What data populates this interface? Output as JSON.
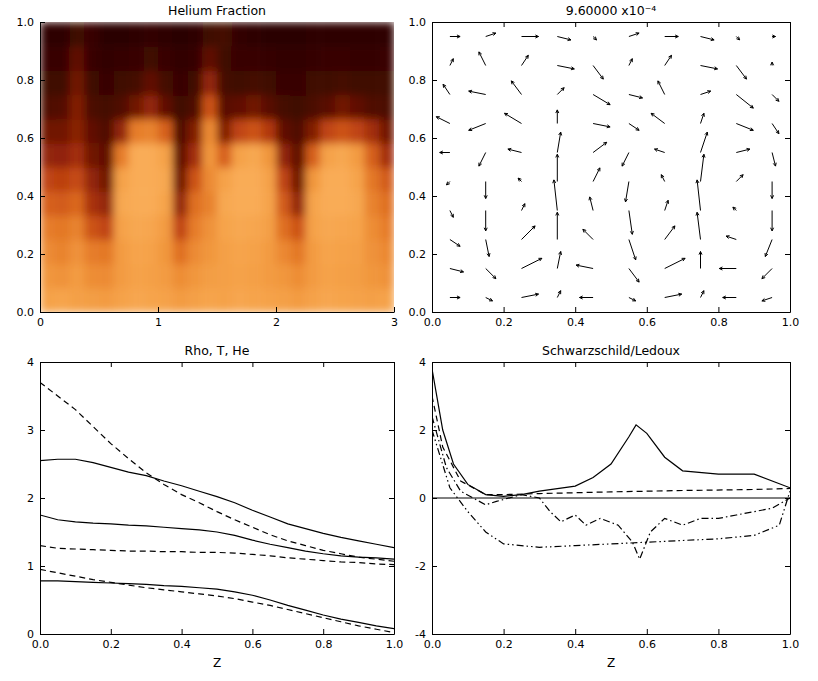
{
  "chart_data": [
    {
      "type": "heatmap",
      "title": "Helium Fraction",
      "xlim": [
        0,
        3
      ],
      "ylim": [
        0,
        1
      ],
      "xticks": [
        0,
        1,
        2,
        3
      ],
      "yticks": [
        {
          "value": 0,
          "label": "0.0"
        },
        {
          "value": 0.2,
          "label": "0.2"
        },
        {
          "value": 0.4,
          "label": "0.4"
        },
        {
          "value": 0.6,
          "label": "0.6"
        },
        {
          "value": 0.8,
          "label": "0.8"
        },
        {
          "value": 1,
          "label": "1.0"
        }
      ],
      "zlim": [
        0,
        1
      ],
      "cells": [
        [
          0.85,
          0.86,
          0.84,
          0.83,
          0.82,
          0.85,
          0.87,
          0.86,
          0.85,
          0.82,
          0.84,
          0.86,
          0.85,
          0.87,
          0.86,
          0.85,
          0.84,
          0.82,
          0.85,
          0.87,
          0.86,
          0.85,
          0.84,
          0.85
        ],
        [
          0.8,
          0.78,
          0.82,
          0.76,
          0.75,
          0.82,
          0.85,
          0.84,
          0.82,
          0.76,
          0.8,
          0.83,
          0.84,
          0.85,
          0.84,
          0.82,
          0.8,
          0.76,
          0.82,
          0.85,
          0.84,
          0.83,
          0.8,
          0.78
        ],
        [
          0.75,
          0.72,
          0.78,
          0.7,
          0.68,
          0.82,
          0.86,
          0.85,
          0.8,
          0.65,
          0.75,
          0.8,
          0.84,
          0.86,
          0.85,
          0.82,
          0.74,
          0.68,
          0.82,
          0.86,
          0.85,
          0.84,
          0.78,
          0.74
        ],
        [
          0.7,
          0.68,
          0.72,
          0.55,
          0.5,
          0.85,
          0.88,
          0.87,
          0.82,
          0.5,
          0.7,
          0.78,
          0.86,
          0.88,
          0.87,
          0.84,
          0.65,
          0.55,
          0.85,
          0.88,
          0.87,
          0.86,
          0.76,
          0.7
        ],
        [
          0.6,
          0.58,
          0.62,
          0.42,
          0.35,
          0.88,
          0.9,
          0.9,
          0.86,
          0.35,
          0.65,
          0.72,
          0.88,
          0.9,
          0.9,
          0.86,
          0.58,
          0.35,
          0.86,
          0.9,
          0.9,
          0.88,
          0.72,
          0.65
        ],
        [
          0.5,
          0.48,
          0.52,
          0.35,
          0.25,
          0.85,
          0.9,
          0.9,
          0.88,
          0.25,
          0.55,
          0.75,
          0.85,
          0.9,
          0.9,
          0.85,
          0.5,
          0.25,
          0.8,
          0.9,
          0.9,
          0.86,
          0.68,
          0.58
        ],
        [
          0.35,
          0.34,
          0.4,
          0.25,
          0.2,
          0.7,
          0.9,
          0.9,
          0.85,
          0.2,
          0.4,
          0.8,
          0.6,
          0.85,
          0.88,
          0.8,
          0.35,
          0.2,
          0.6,
          0.85,
          0.88,
          0.82,
          0.6,
          0.4
        ],
        [
          0.25,
          0.25,
          0.32,
          0.2,
          0.15,
          0.35,
          0.7,
          0.72,
          0.6,
          0.15,
          0.3,
          0.75,
          0.3,
          0.5,
          0.55,
          0.45,
          0.2,
          0.15,
          0.3,
          0.5,
          0.55,
          0.5,
          0.4,
          0.25
        ],
        [
          0.15,
          0.16,
          0.3,
          0.14,
          0.12,
          0.15,
          0.25,
          0.35,
          0.2,
          0.1,
          0.15,
          0.55,
          0.18,
          0.2,
          0.25,
          0.18,
          0.12,
          0.1,
          0.14,
          0.18,
          0.25,
          0.2,
          0.15,
          0.14
        ],
        [
          0.1,
          0.1,
          0.25,
          0.1,
          0.08,
          0.1,
          0.12,
          0.2,
          0.12,
          0.08,
          0.1,
          0.35,
          0.12,
          0.1,
          0.12,
          0.1,
          0.08,
          0.08,
          0.1,
          0.1,
          0.12,
          0.1,
          0.1,
          0.1
        ],
        [
          0.08,
          0.08,
          0.2,
          0.08,
          0.06,
          0.07,
          0.08,
          0.1,
          0.08,
          0.06,
          0.07,
          0.2,
          0.1,
          0.08,
          0.08,
          0.07,
          0.06,
          0.06,
          0.07,
          0.08,
          0.08,
          0.07,
          0.07,
          0.08
        ],
        [
          0.05,
          0.05,
          0.1,
          0.08,
          0.04,
          0.04,
          0.05,
          0.06,
          0.05,
          0.04,
          0.05,
          0.1,
          0.12,
          0.06,
          0.05,
          0.04,
          0.04,
          0.04,
          0.05,
          0.05,
          0.05,
          0.05,
          0.05,
          0.05
        ]
      ]
    },
    {
      "type": "quiver",
      "title": "9.60000 x10⁻⁴",
      "xlim": [
        0,
        1
      ],
      "ylim": [
        0,
        1
      ],
      "xticks": [
        {
          "value": 0,
          "label": "0.0"
        },
        {
          "value": 0.2,
          "label": "0.2"
        },
        {
          "value": 0.4,
          "label": "0.4"
        },
        {
          "value": 0.6,
          "label": "0.6"
        },
        {
          "value": 0.8,
          "label": "0.8"
        },
        {
          "value": 1,
          "label": "1.0"
        }
      ],
      "yticks": [
        {
          "value": 0,
          "label": "0.0"
        },
        {
          "value": 0.2,
          "label": "0.2"
        },
        {
          "value": 0.4,
          "label": "0.4"
        },
        {
          "value": 0.6,
          "label": "0.6"
        },
        {
          "value": 0.8,
          "label": "0.8"
        },
        {
          "value": 1,
          "label": "1.0"
        }
      ],
      "color": "#000000",
      "x": [
        0.05,
        0.15,
        0.25,
        0.35,
        0.45,
        0.55,
        0.65,
        0.75,
        0.85,
        0.95
      ],
      "y": [
        0.05,
        0.15,
        0.25,
        0.35,
        0.45,
        0.55,
        0.65,
        0.75,
        0.85,
        0.95
      ],
      "u": [
        [
          0.3,
          0.2,
          0.5,
          0.1,
          -0.4,
          0.2,
          0.5,
          0.1,
          -0.4,
          -0.3
        ],
        [
          0.4,
          0.3,
          0.6,
          0.1,
          -0.5,
          0.3,
          0.6,
          0.0,
          -0.5,
          -0.3
        ],
        [
          0.3,
          0.1,
          0.4,
          0.0,
          -0.3,
          0.2,
          0.3,
          -0.1,
          -0.3,
          -0.2
        ],
        [
          0.1,
          0.0,
          0.1,
          -0.1,
          -0.1,
          0.1,
          0.1,
          -0.1,
          -0.1,
          0.0
        ],
        [
          -0.1,
          0.0,
          -0.1,
          0.0,
          0.2,
          -0.1,
          -0.1,
          0.1,
          0.2,
          0.0
        ],
        [
          -0.3,
          -0.2,
          -0.4,
          0.1,
          0.4,
          -0.2,
          -0.3,
          0.2,
          0.4,
          0.1
        ],
        [
          -0.4,
          -0.5,
          -0.5,
          0.0,
          0.5,
          0.3,
          -0.4,
          0.1,
          0.5,
          0.2
        ],
        [
          -0.2,
          -0.5,
          -0.3,
          0.2,
          0.5,
          0.4,
          -0.2,
          0.3,
          0.5,
          0.2
        ],
        [
          0.1,
          -0.2,
          0.2,
          0.5,
          0.3,
          0.1,
          0.2,
          0.5,
          0.3,
          0.0
        ],
        [
          0.3,
          0.3,
          0.5,
          0.4,
          0.1,
          0.3,
          0.4,
          0.4,
          0.1,
          0.1
        ]
      ],
      "v": [
        [
          0.0,
          -0.1,
          0.1,
          0.2,
          0.0,
          -0.1,
          0.1,
          0.2,
          0.0,
          -0.1
        ],
        [
          -0.1,
          -0.3,
          0.3,
          0.5,
          0.1,
          -0.4,
          0.3,
          0.5,
          0.0,
          -0.3
        ],
        [
          -0.2,
          -0.5,
          0.4,
          0.8,
          0.3,
          -0.6,
          0.4,
          0.8,
          0.1,
          -0.5
        ],
        [
          -0.2,
          -0.6,
          0.2,
          0.9,
          0.4,
          -0.7,
          0.3,
          0.9,
          0.1,
          -0.6
        ],
        [
          -0.1,
          -0.5,
          0.1,
          0.8,
          0.4,
          -0.6,
          0.2,
          0.8,
          0.2,
          -0.5
        ],
        [
          0.0,
          -0.4,
          0.1,
          0.6,
          0.3,
          -0.4,
          0.1,
          0.6,
          0.1,
          -0.4
        ],
        [
          0.2,
          -0.2,
          0.3,
          0.4,
          -0.1,
          -0.2,
          0.3,
          0.3,
          -0.2,
          -0.3
        ],
        [
          0.3,
          0.1,
          0.4,
          0.2,
          -0.3,
          -0.1,
          0.4,
          0.1,
          -0.4,
          -0.2
        ],
        [
          0.2,
          0.4,
          0.3,
          -0.1,
          -0.4,
          0.2,
          0.3,
          -0.1,
          -0.4,
          0.1
        ],
        [
          0.0,
          0.1,
          0.0,
          -0.1,
          -0.1,
          0.1,
          0.0,
          -0.1,
          -0.1,
          0.0
        ]
      ]
    },
    {
      "type": "line",
      "title": "Rho, T, He",
      "x_label": "Z",
      "xlim": [
        0,
        1
      ],
      "ylim": [
        0,
        4
      ],
      "xticks": [
        {
          "value": 0,
          "label": "0.0"
        },
        {
          "value": 0.2,
          "label": "0.2"
        },
        {
          "value": 0.4,
          "label": "0.4"
        },
        {
          "value": 0.6,
          "label": "0.6"
        },
        {
          "value": 0.8,
          "label": "0.8"
        },
        {
          "value": 1,
          "label": "1.0"
        }
      ],
      "yticks": [
        0,
        1,
        2,
        3,
        4
      ],
      "x": [
        0,
        0.05,
        0.1,
        0.15,
        0.2,
        0.25,
        0.3,
        0.35,
        0.4,
        0.45,
        0.5,
        0.55,
        0.6,
        0.65,
        0.7,
        0.75,
        0.8,
        0.85,
        0.9,
        0.95,
        1
      ],
      "series": [
        {
          "color": "#000000",
          "line_style": "solid",
          "values": [
            2.55,
            2.57,
            2.57,
            2.52,
            2.45,
            2.38,
            2.33,
            2.25,
            2.18,
            2.1,
            2.02,
            1.93,
            1.82,
            1.72,
            1.62,
            1.55,
            1.48,
            1.42,
            1.37,
            1.32,
            1.27
          ]
        },
        {
          "color": "#000000",
          "line_style": "solid",
          "values": [
            1.75,
            1.68,
            1.65,
            1.63,
            1.62,
            1.6,
            1.59,
            1.57,
            1.55,
            1.53,
            1.5,
            1.45,
            1.38,
            1.32,
            1.27,
            1.22,
            1.18,
            1.15,
            1.13,
            1.12,
            1.1
          ]
        },
        {
          "color": "#000000",
          "line_style": "solid",
          "values": [
            0.78,
            0.78,
            0.77,
            0.76,
            0.75,
            0.74,
            0.73,
            0.71,
            0.7,
            0.68,
            0.66,
            0.62,
            0.57,
            0.5,
            0.42,
            0.35,
            0.28,
            0.22,
            0.17,
            0.12,
            0.08
          ]
        },
        {
          "color": "#000000",
          "line_style": "dashed",
          "values": [
            3.7,
            3.5,
            3.3,
            3.05,
            2.8,
            2.58,
            2.37,
            2.2,
            2.05,
            1.93,
            1.8,
            1.68,
            1.57,
            1.46,
            1.37,
            1.3,
            1.23,
            1.18,
            1.13,
            1.1,
            1.07
          ]
        },
        {
          "color": "#000000",
          "line_style": "dashed",
          "values": [
            1.3,
            1.26,
            1.25,
            1.24,
            1.23,
            1.22,
            1.22,
            1.21,
            1.21,
            1.2,
            1.2,
            1.19,
            1.17,
            1.15,
            1.12,
            1.1,
            1.08,
            1.06,
            1.05,
            1.03,
            1.02
          ]
        },
        {
          "color": "#000000",
          "line_style": "dashed",
          "values": [
            0.95,
            0.9,
            0.85,
            0.8,
            0.76,
            0.72,
            0.68,
            0.65,
            0.62,
            0.59,
            0.56,
            0.52,
            0.47,
            0.42,
            0.36,
            0.3,
            0.24,
            0.18,
            0.12,
            0.07,
            0.02
          ]
        }
      ]
    },
    {
      "type": "line",
      "title": "Schwarzschild/Ledoux",
      "x_label": "Z",
      "xlim": [
        0,
        1
      ],
      "ylim": [
        -4,
        4
      ],
      "xticks": [
        {
          "value": 0,
          "label": "0.0"
        },
        {
          "value": 0.2,
          "label": "0.2"
        },
        {
          "value": 0.4,
          "label": "0.4"
        },
        {
          "value": 0.6,
          "label": "0.6"
        },
        {
          "value": 0.8,
          "label": "0.8"
        },
        {
          "value": 1,
          "label": "1.0"
        }
      ],
      "yticks": [
        -4,
        -2,
        0,
        2,
        4
      ],
      "hline": 0,
      "series": [
        {
          "color": "#000000",
          "line_style": "solid",
          "x": [
            0,
            0.03,
            0.06,
            0.1,
            0.15,
            0.2,
            0.25,
            0.3,
            0.4,
            0.45,
            0.5,
            0.55,
            0.57,
            0.6,
            0.65,
            0.7,
            0.8,
            0.9,
            1
          ],
          "values": [
            3.8,
            2.0,
            1.0,
            0.4,
            0.1,
            0.05,
            0.1,
            0.2,
            0.35,
            0.6,
            1.0,
            1.8,
            2.15,
            1.9,
            1.2,
            0.8,
            0.7,
            0.7,
            0.3
          ]
        },
        {
          "color": "#000000",
          "line_style": "dashed",
          "x": [
            0,
            0.03,
            0.08,
            0.15,
            0.2,
            0.3,
            0.5,
            0.7,
            0.9,
            1
          ],
          "values": [
            3.0,
            1.5,
            0.5,
            0.1,
            0.1,
            0.13,
            0.18,
            0.22,
            0.25,
            0.28
          ]
        },
        {
          "color": "#000000",
          "line_style": "dashdot",
          "x": [
            0,
            0.04,
            0.08,
            0.15,
            0.18,
            0.25,
            0.3,
            0.33,
            0.36,
            0.4,
            0.43,
            0.47,
            0.52,
            0.56,
            0.58,
            0.61,
            0.65,
            0.7,
            0.75,
            0.8,
            0.85,
            0.9,
            0.95,
            1
          ],
          "values": [
            2.4,
            0.9,
            0.2,
            -0.2,
            -0.1,
            0.1,
            0.0,
            -0.4,
            -0.7,
            -0.5,
            -0.8,
            -0.6,
            -0.8,
            -1.3,
            -1.8,
            -1.0,
            -0.6,
            -0.8,
            -0.6,
            -0.6,
            -0.5,
            -0.4,
            -0.3,
            0.0
          ]
        },
        {
          "color": "#000000",
          "line_style": "dashdotdot",
          "x": [
            0,
            0.05,
            0.1,
            0.15,
            0.2,
            0.3,
            0.4,
            0.5,
            0.6,
            0.7,
            0.8,
            0.9,
            0.97,
            1
          ],
          "values": [
            2.0,
            0.3,
            -0.4,
            -1.0,
            -1.35,
            -1.45,
            -1.4,
            -1.35,
            -1.3,
            -1.25,
            -1.2,
            -1.1,
            -0.8,
            0.2
          ]
        }
      ]
    }
  ]
}
